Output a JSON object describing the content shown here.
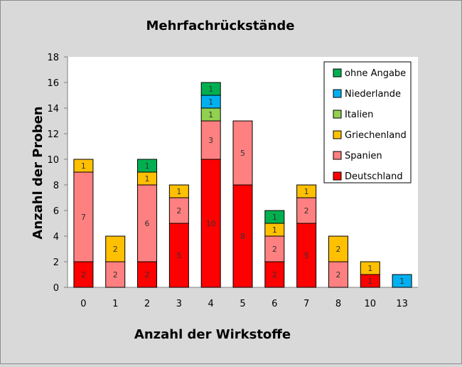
{
  "chart_data": {
    "type": "bar",
    "stacked": true,
    "title": "Mehrfachrückstände",
    "xlabel": "Anzahl der Wirkstoffe",
    "ylabel": "Anzahl der Proben",
    "ylim": [
      0,
      18
    ],
    "yticks": [
      0,
      2,
      4,
      6,
      8,
      10,
      12,
      14,
      16,
      18
    ],
    "grid": false,
    "legend_position": "top-right",
    "categories": [
      "0",
      "1",
      "2",
      "3",
      "4",
      "5",
      "6",
      "7",
      "8",
      "10",
      "13"
    ],
    "series": [
      {
        "name": "Deutschland",
        "color": "#ff0000",
        "values": [
          2,
          0,
          2,
          5,
          10,
          8,
          2,
          5,
          0,
          1,
          0
        ]
      },
      {
        "name": "Spanien",
        "color": "#ff8080",
        "values": [
          7,
          2,
          6,
          2,
          3,
          5,
          2,
          2,
          2,
          0,
          0
        ]
      },
      {
        "name": "Griechenland",
        "color": "#ffc000",
        "values": [
          1,
          2,
          1,
          1,
          0,
          0,
          1,
          1,
          2,
          1,
          0
        ]
      },
      {
        "name": "Italien",
        "color": "#92d050",
        "values": [
          0,
          0,
          0,
          0,
          1,
          0,
          0,
          0,
          0,
          0,
          0
        ]
      },
      {
        "name": "Niederlande",
        "color": "#00b0f0",
        "values": [
          0,
          0,
          0,
          0,
          1,
          0,
          0,
          0,
          0,
          0,
          1
        ]
      },
      {
        "name": "ohne Angabe",
        "color": "#00b050",
        "values": [
          0,
          0,
          1,
          0,
          1,
          0,
          1,
          0,
          0,
          0,
          0
        ]
      }
    ]
  }
}
